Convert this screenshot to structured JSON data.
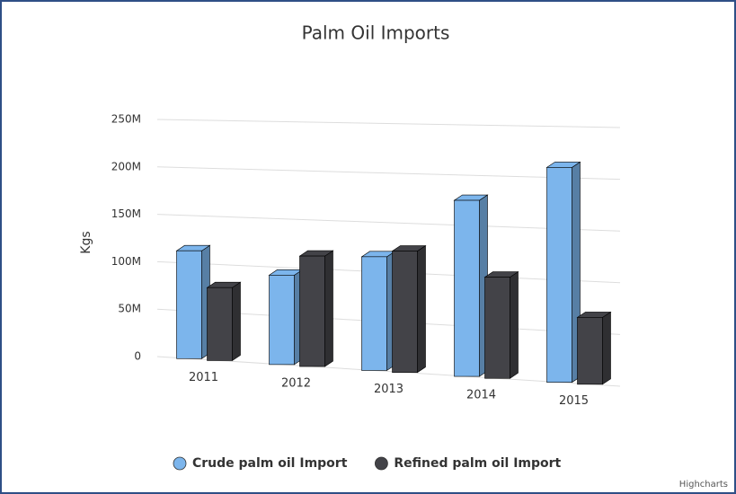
{
  "chart_data": {
    "type": "bar3d",
    "title": "Palm Oil Imports",
    "y_label": "Kgs",
    "credit": "Highcharts",
    "categories": [
      "2011",
      "2012",
      "2013",
      "2014",
      "2015"
    ],
    "series": [
      {
        "name": "Crude palm oil Import",
        "color": "#7cb5ec",
        "values": [
          113000000,
          92000000,
          115000000,
          175000000,
          210000000
        ]
      },
      {
        "name": "Refined palm oil Import",
        "color": "#434348",
        "values": [
          76000000,
          113000000,
          122000000,
          100000000,
          65000000
        ]
      }
    ],
    "ylim": [
      0,
      250000000
    ],
    "yticks": [
      {
        "value": 0,
        "label": "0"
      },
      {
        "value": 50000000,
        "label": "50M"
      },
      {
        "value": 100000000,
        "label": "100M"
      },
      {
        "value": 150000000,
        "label": "150M"
      },
      {
        "value": 200000000,
        "label": "200M"
      },
      {
        "value": 250000000,
        "label": "250M"
      }
    ],
    "grid": true,
    "legend": "bottom"
  }
}
